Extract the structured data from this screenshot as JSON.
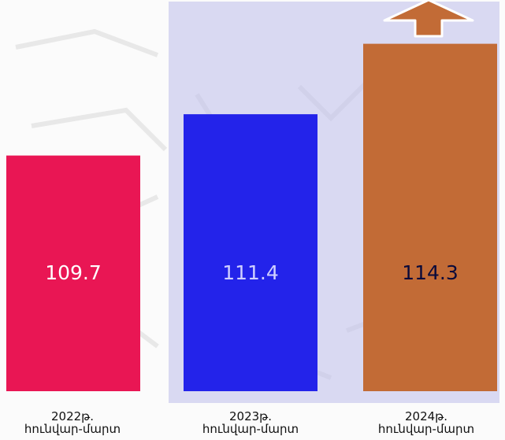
{
  "chart_data": {
    "type": "bar",
    "categories": [
      [
        "2022թ.",
        "հունվար-մարտ"
      ],
      [
        "2023թ.",
        "հունվար-մարտ"
      ],
      [
        "2024թ.",
        "հունվար-մարտ"
      ]
    ],
    "values": [
      109.7,
      111.4,
      114.3
    ],
    "value_labels": [
      "109.7",
      "111.4",
      "114.3"
    ],
    "bar_colors": [
      "#e91654",
      "#2323ea",
      "#c26b36"
    ],
    "label_colors": [
      "#ffffff",
      "#d0d0ff",
      "#0a0a3a"
    ],
    "ylim": [
      100,
      115
    ],
    "title": "",
    "xlabel": "",
    "ylabel": "",
    "grid": false,
    "legend": "none",
    "annotations": [
      "up-arrow-icon above last bar"
    ]
  },
  "colors": {
    "highlight_panel": "#bebeeb",
    "arrow_fill": "#c26b36",
    "arrow_stroke": "#ffffff"
  }
}
